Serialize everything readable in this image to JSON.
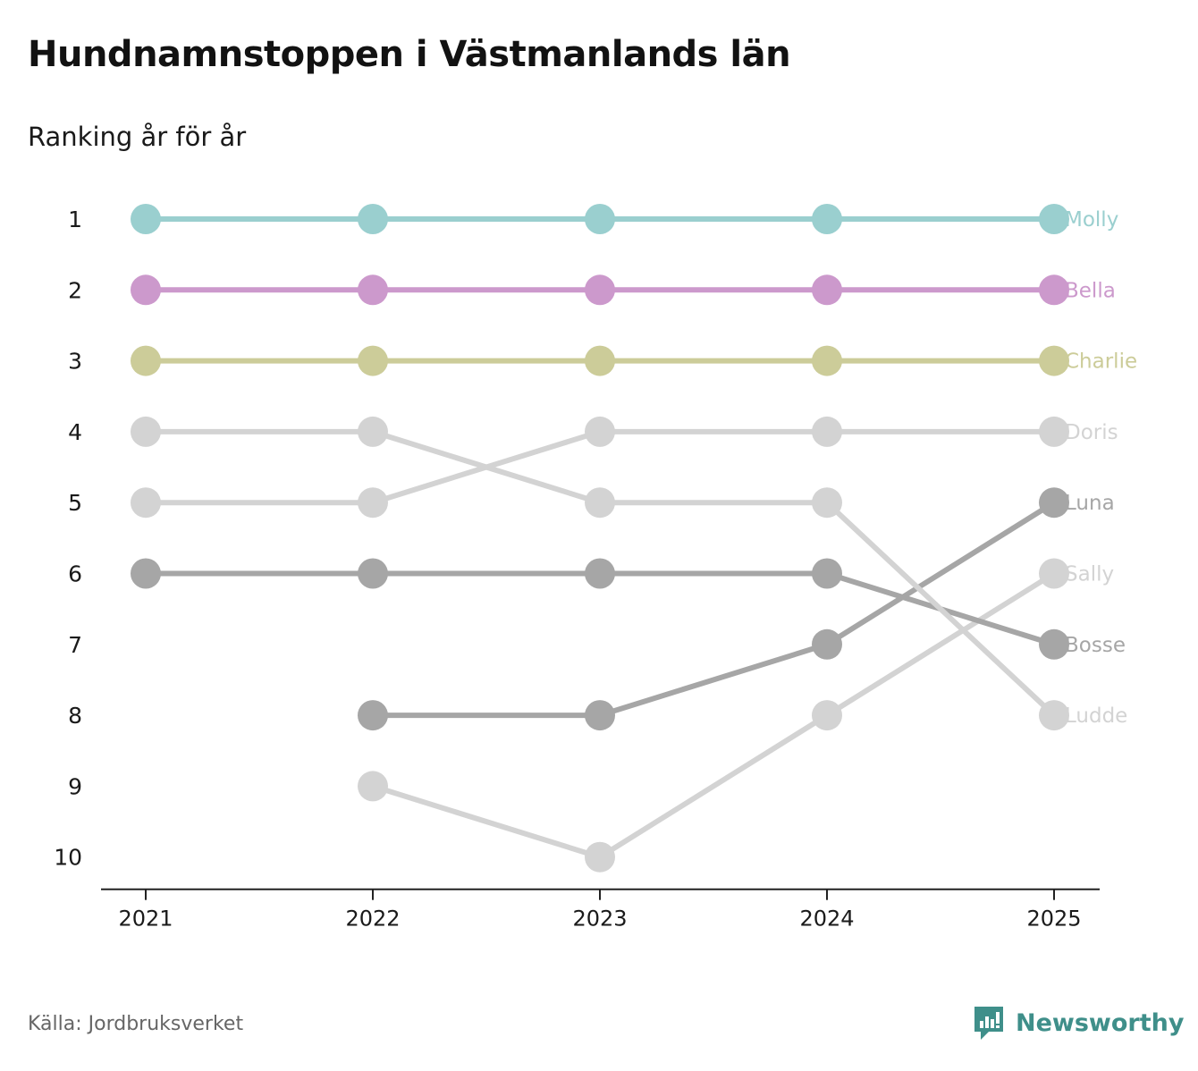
{
  "header": {
    "title": "Hundnamnstoppen i Västmanlands län",
    "subtitle": "Ranking år för år"
  },
  "footer": {
    "source": "Källa: Jordbruksverket",
    "brand": "Newsworthy",
    "brand_icon": "bar-chart-speech-bubble-icon",
    "brand_color": "#3f8f8a"
  },
  "chart_data": {
    "type": "line",
    "title": "Hundnamnstoppen i Västmanlands län",
    "subtitle": "Ranking år för år",
    "xlabel": "",
    "ylabel": "",
    "x": [
      "2021",
      "2022",
      "2023",
      "2024",
      "2025"
    ],
    "y_ticks": [
      1,
      2,
      3,
      4,
      5,
      6,
      7,
      8,
      9,
      10
    ],
    "ylim": [
      1,
      10
    ],
    "y_inverted": true,
    "grid": false,
    "series": [
      {
        "name": "Molly",
        "color": "#9acfcf",
        "values": [
          1,
          1,
          1,
          1,
          1
        ]
      },
      {
        "name": "Bella",
        "color": "#cc99cc",
        "values": [
          2,
          2,
          2,
          2,
          2
        ]
      },
      {
        "name": "Charlie",
        "color": "#cccc99",
        "values": [
          3,
          3,
          3,
          3,
          3
        ]
      },
      {
        "name": "Doris",
        "color": "#d3d3d3",
        "values": [
          5,
          5,
          4,
          4,
          4
        ]
      },
      {
        "name": "Luna",
        "color": "#a6a6a6",
        "values": [
          null,
          8,
          8,
          7,
          5
        ]
      },
      {
        "name": "Sally",
        "color": "#d3d3d3",
        "values": [
          null,
          9,
          10,
          8,
          6
        ]
      },
      {
        "name": "Bosse",
        "color": "#a6a6a6",
        "values": [
          6,
          6,
          6,
          6,
          7
        ]
      },
      {
        "name": "Ludde",
        "color": "#d3d3d3",
        "values": [
          4,
          4,
          5,
          5,
          8
        ]
      }
    ]
  }
}
